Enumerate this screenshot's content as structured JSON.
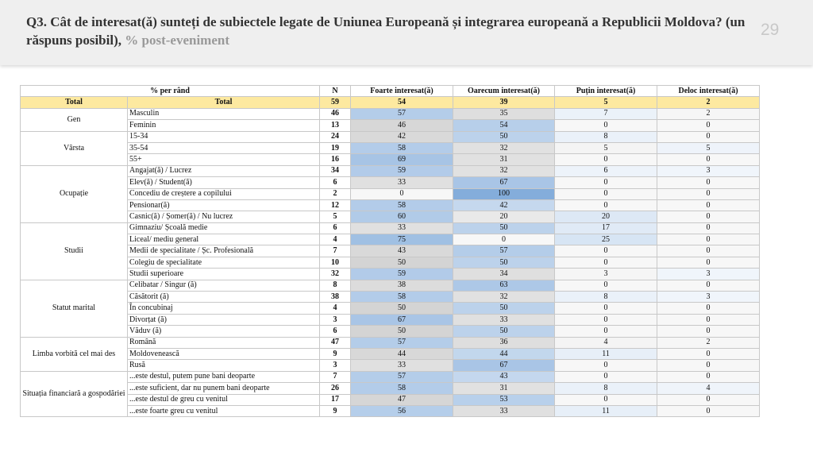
{
  "header": {
    "title": "Q3. Cât de interesat(ă) sunteți de subiectele legate de Uniunea Europeană și integrarea europeană a Republicii Moldova? (un răspuns posibil),",
    "subtitle": "% post-eveniment",
    "page_number": "29"
  },
  "table": {
    "headers": [
      "% per rând",
      "N",
      "Foarte interesat(ă)",
      "Oarecum interesat(ă)",
      "Puțin interesat(ă)",
      "Deloc interesat(ă)"
    ],
    "total": {
      "group": "Total",
      "label": "Total",
      "values": [
        59,
        54,
        39,
        5,
        2
      ]
    },
    "groups": [
      {
        "label": "Gen",
        "rows": [
          {
            "label": "Masculin",
            "values": [
              46,
              57,
              35,
              7,
              2
            ]
          },
          {
            "label": "Feminin",
            "values": [
              13,
              46,
              54,
              0,
              0
            ]
          }
        ]
      },
      {
        "label": "Vârsta",
        "rows": [
          {
            "label": "15-34",
            "values": [
              24,
              42,
              50,
              8,
              0
            ]
          },
          {
            "label": "35-54",
            "values": [
              19,
              58,
              32,
              5,
              5
            ]
          },
          {
            "label": "55+",
            "values": [
              16,
              69,
              31,
              0,
              0
            ]
          }
        ]
      },
      {
        "label": "Ocupație",
        "rows": [
          {
            "label": "Angajat(ă) / Lucrez",
            "values": [
              34,
              59,
              32,
              6,
              3
            ]
          },
          {
            "label": "Elev(ă) / Student(ă)",
            "values": [
              6,
              33,
              67,
              0,
              0
            ]
          },
          {
            "label": "Concediu de creștere a copilului",
            "values": [
              2,
              0,
              100,
              0,
              0
            ]
          },
          {
            "label": "Pensionar(ă)",
            "values": [
              12,
              58,
              42,
              0,
              0
            ]
          },
          {
            "label": "Casnic(ă) / Șomer(ă) / Nu lucrez",
            "values": [
              5,
              60,
              20,
              20,
              0
            ]
          }
        ]
      },
      {
        "label": "Studii",
        "rows": [
          {
            "label": "Gimnaziu/ Școală medie",
            "values": [
              6,
              33,
              50,
              17,
              0
            ]
          },
          {
            "label": "Liceal/ mediu general",
            "values": [
              4,
              75,
              0,
              25,
              0
            ]
          },
          {
            "label": "Medii de specialitate / Șc. Profesională",
            "values": [
              7,
              43,
              57,
              0,
              0
            ]
          },
          {
            "label": "Colegiu de specialitate",
            "values": [
              10,
              50,
              50,
              0,
              0
            ]
          },
          {
            "label": "Studii superioare",
            "values": [
              32,
              59,
              34,
              3,
              3
            ]
          }
        ]
      },
      {
        "label": "Statut marital",
        "rows": [
          {
            "label": "Celibatar / Singur (ă)",
            "values": [
              8,
              38,
              63,
              0,
              0
            ]
          },
          {
            "label": "Căsătorit (ă)",
            "values": [
              38,
              58,
              32,
              8,
              3
            ]
          },
          {
            "label": "În concubinaj",
            "values": [
              4,
              50,
              50,
              0,
              0
            ]
          },
          {
            "label": "Divorțat (ă)",
            "values": [
              3,
              67,
              33,
              0,
              0
            ]
          },
          {
            "label": "Văduv (ă)",
            "values": [
              6,
              50,
              50,
              0,
              0
            ]
          }
        ]
      },
      {
        "label": "Limba vorbită cel mai des",
        "rows": [
          {
            "label": "Română",
            "values": [
              47,
              57,
              36,
              4,
              2
            ]
          },
          {
            "label": "Moldovenească",
            "values": [
              9,
              44,
              44,
              11,
              0
            ]
          },
          {
            "label": "Rusă",
            "values": [
              3,
              33,
              67,
              0,
              0
            ]
          }
        ]
      },
      {
        "label": "Situația financiară a gospodăriei",
        "rows": [
          {
            "label": "...este destul, putem pune bani deoparte",
            "values": [
              7,
              57,
              43,
              0,
              0
            ]
          },
          {
            "label": "...este suficient, dar nu punem bani deoparte",
            "values": [
              26,
              58,
              31,
              8,
              4
            ]
          },
          {
            "label": "...este destul de greu cu venitul",
            "values": [
              17,
              47,
              53,
              0,
              0
            ]
          },
          {
            "label": "...este foarte greu cu venitul",
            "values": [
              9,
              56,
              33,
              11,
              0
            ]
          }
        ]
      }
    ]
  }
}
